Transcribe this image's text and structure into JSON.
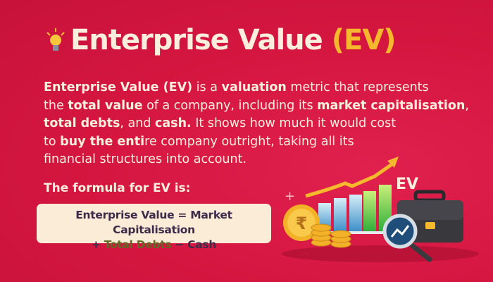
{
  "title": {
    "main": "Enterprise Value",
    "accent": "(EV)"
  },
  "description": {
    "lines": [
      [
        {
          "t": "Enterprise Value (EV)",
          "b": true
        },
        {
          "t": " is a ",
          "b": false
        },
        {
          "t": "valuation",
          "b": true
        },
        {
          "t": " metric that represents",
          "b": false
        }
      ],
      [
        {
          "t": "the ",
          "b": false
        },
        {
          "t": "total value",
          "b": true
        },
        {
          "t": " of a company, including its ",
          "b": false
        },
        {
          "t": "market capitalisation",
          "b": true
        },
        {
          "t": ",",
          "b": false
        }
      ],
      [
        {
          "t": "total debts",
          "b": true
        },
        {
          "t": ", and ",
          "b": false
        },
        {
          "t": "cash.",
          "b": true
        },
        {
          "t": " It shows how much it would cost",
          "b": false
        }
      ],
      [
        {
          "t": "to ",
          "b": false
        },
        {
          "t": "buy the enti",
          "b": true
        },
        {
          "t": "re company outright, taking all its",
          "b": false
        }
      ],
      [
        {
          "t": "financial structures into account.",
          "b": false
        }
      ]
    ]
  },
  "formula": {
    "label": "The formula for EV is:",
    "line1": "Enterprise Value = Market Capitalisation",
    "plus": "+ ",
    "debts": "Total Debts",
    "minus": " − Cash"
  },
  "illustration": {
    "ev_label": "EV",
    "currency_symbol": "₹",
    "icons": [
      "lightbulb-icon",
      "rupee-coin-icon",
      "coin-stack-icon",
      "bar-chart-icon",
      "trend-arrow-icon",
      "briefcase-icon",
      "magnifier-icon"
    ]
  },
  "colors": {
    "background": "#d4163f",
    "text": "#fbeedd",
    "accent": "#f6b82c",
    "formula_box": "#fbecd8",
    "formula_text": "#3d2b4a",
    "formula_green": "#5d6b25"
  }
}
